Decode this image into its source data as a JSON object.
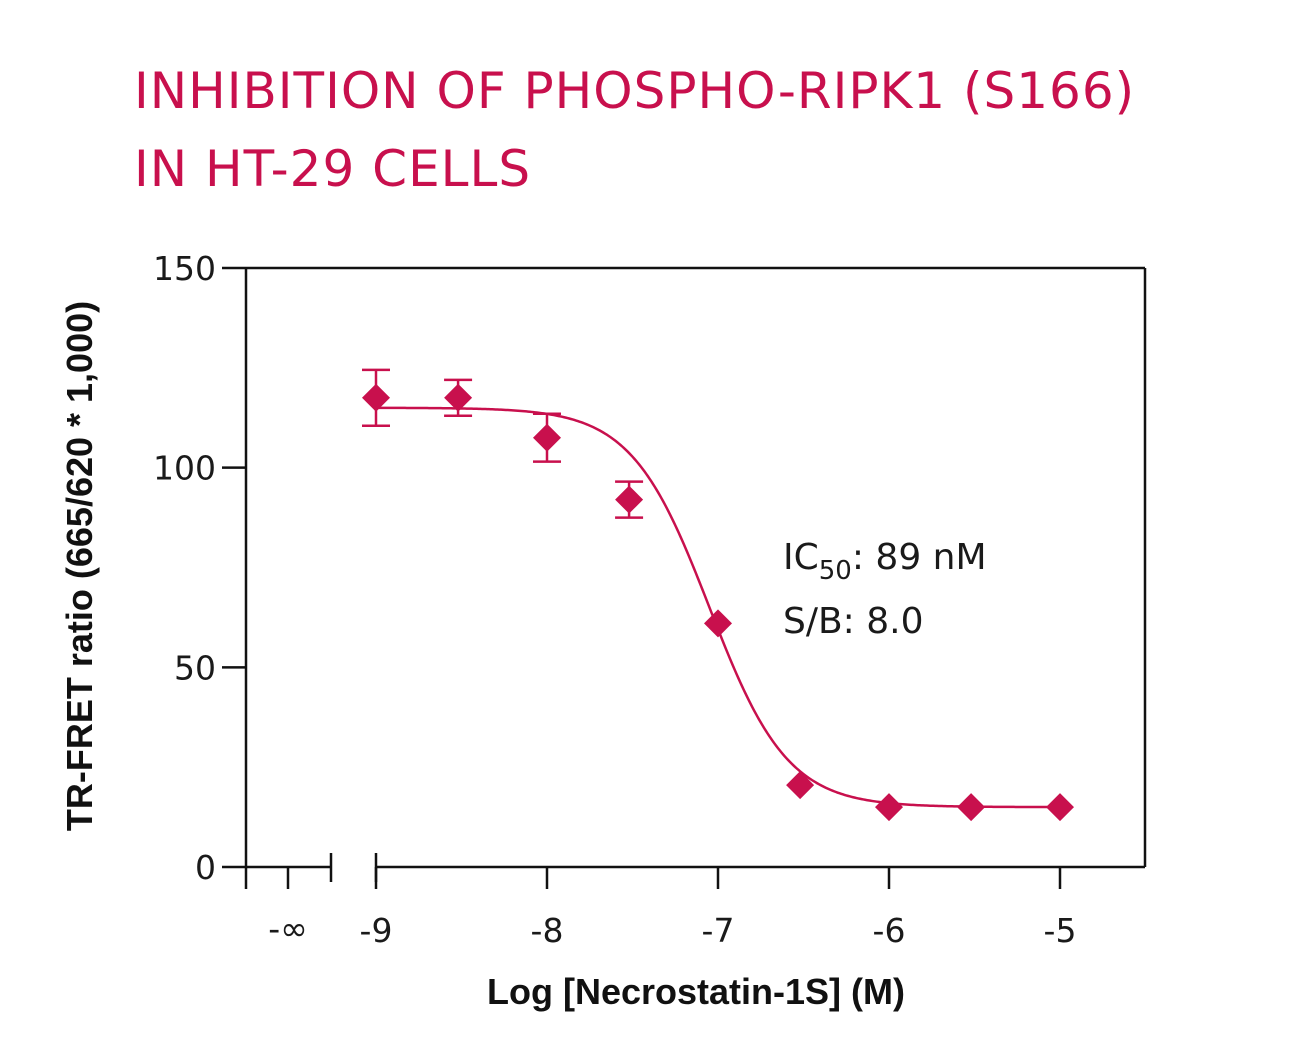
{
  "title_lines": [
    "INHIBITION OF PHOSPHO-RIPK1 (S166)",
    "IN HT-29 CELLS"
  ],
  "colors": {
    "accent": "#c8104d",
    "axis": "#111111"
  },
  "chart_data": {
    "type": "scatter",
    "title": "INHIBITION OF PHOSPHO-RIPK1 (S166) IN HT-29 CELLS",
    "xlabel": "Log [Necrostatin-1S] (M)",
    "ylabel": "TR-FRET ratio (665/620 * 1,000)",
    "xlim": [
      -9.75,
      -4.5
    ],
    "ylim": [
      0,
      150
    ],
    "y_ticks": [
      0,
      50,
      100,
      150
    ],
    "x_ticks": [
      -9,
      -8,
      -7,
      -6,
      -5
    ],
    "x_break_label": "-∞",
    "grid": false,
    "points": [
      {
        "x": -9.0,
        "y": 117.5,
        "err": 7.0
      },
      {
        "x": -8.52,
        "y": 117.5,
        "err": 4.5
      },
      {
        "x": -8.0,
        "y": 107.5,
        "err": 6.0
      },
      {
        "x": -7.52,
        "y": 92.0,
        "err": 4.5
      },
      {
        "x": -7.0,
        "y": 61.0,
        "err": 0
      },
      {
        "x": -6.52,
        "y": 20.5,
        "err": 0
      },
      {
        "x": -6.0,
        "y": 15.0,
        "err": 0
      },
      {
        "x": -5.52,
        "y": 15.0,
        "err": 0
      },
      {
        "x": -5.0,
        "y": 15.0,
        "err": 0
      }
    ],
    "fit": {
      "top": 115,
      "bottom": 15,
      "log_ic50": -7.05,
      "hill": 1.9
    },
    "annotations": {
      "ic50_prefix": "IC",
      "ic50_sub": "50",
      "ic50_value": ": 89 nM",
      "sb": "S/B: 8.0"
    }
  }
}
